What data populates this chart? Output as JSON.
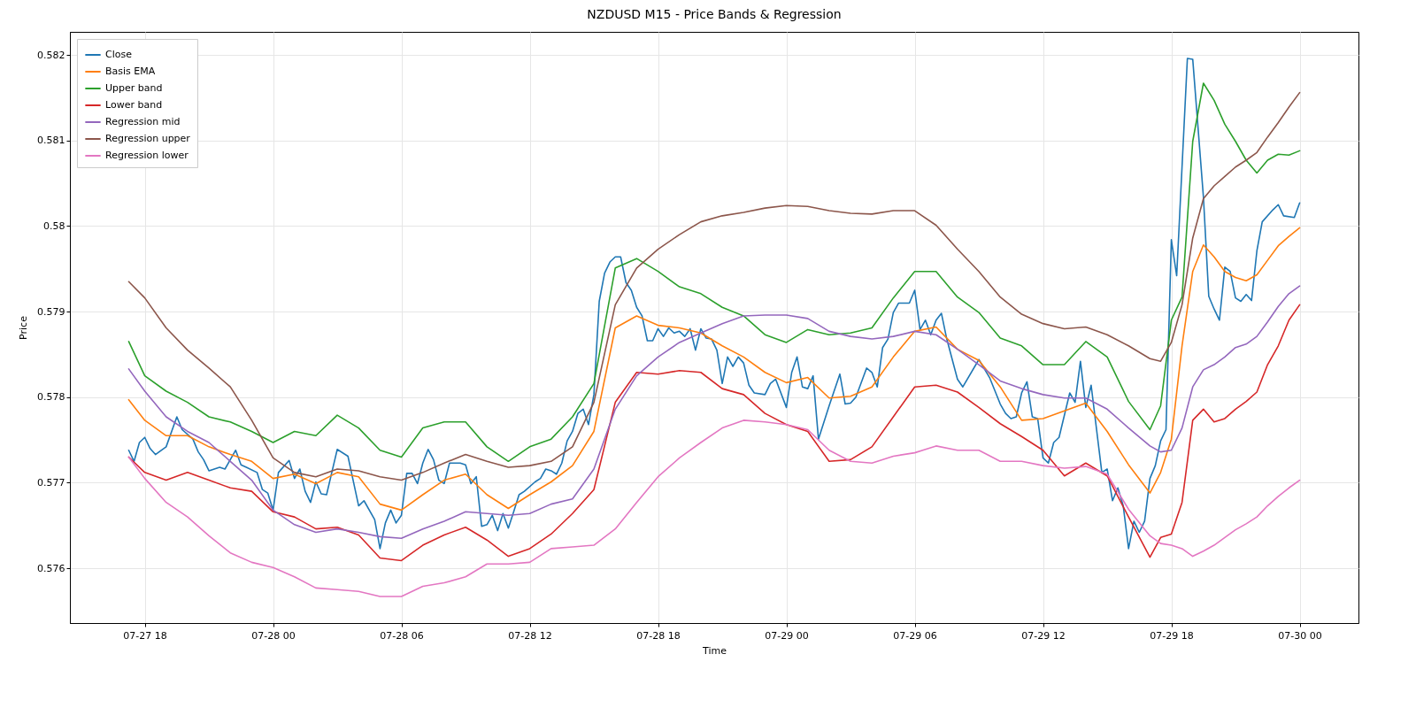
{
  "chart_data": {
    "type": "line",
    "title": "NZDUSD M15 - Price Bands & Regression",
    "xlabel": "Time",
    "ylabel": "Price",
    "x": [
      "--07-27T17:15",
      "--07-27T18:00",
      "--07-27T19:00",
      "--07-27T20:00",
      "--07-27T21:00",
      "--07-27T22:00",
      "--07-27T23:00",
      "--07-28T00:00",
      "--07-28T01:00",
      "--07-28T02:00",
      "--07-28T03:00",
      "--07-28T04:00",
      "--07-28T05:00",
      "--07-28T06:00",
      "--07-28T07:00",
      "--07-28T08:00",
      "--07-28T09:00",
      "--07-28T10:00",
      "--07-28T11:00",
      "--07-28T12:00",
      "--07-28T13:00",
      "--07-28T14:00",
      "--07-28T15:00",
      "--07-28T16:00",
      "--07-28T17:00",
      "--07-28T18:00",
      "--07-28T19:00",
      "--07-28T20:00",
      "--07-28T21:00",
      "--07-28T22:00",
      "--07-28T23:00",
      "--07-29T00:00",
      "--07-29T01:00",
      "--07-29T02:00",
      "--07-29T03:00",
      "--07-29T04:00",
      "--07-29T05:00",
      "--07-29T06:00",
      "--07-29T07:00",
      "--07-29T08:00",
      "--07-29T09:00",
      "--07-29T10:00",
      "--07-29T11:00",
      "--07-29T12:00",
      "--07-29T13:00",
      "--07-29T14:00",
      "--07-29T15:00",
      "--07-29T16:00",
      "--07-29T17:00",
      "--07-29T17:30",
      "--07-29T18:00",
      "--07-29T18:30",
      "--07-29T19:00",
      "--07-29T19:30",
      "--07-29T20:00",
      "--07-29T20:30",
      "--07-29T21:00",
      "--07-29T21:30",
      "--07-29T22:00",
      "--07-29T22:30",
      "--07-29T23:00",
      "--07-29T23:30",
      "--07-30T00:00"
    ],
    "series": [
      {
        "name": "Close",
        "color": "#1f77b4",
        "x": [
          "--07-27T17:15",
          "--07-27T17:30",
          "--07-27T17:45",
          "--07-27T18:00",
          "--07-27T18:15",
          "--07-27T18:30",
          "--07-27T19:00",
          "--07-27T19:30",
          "--07-27T19:45",
          "--07-27T20:15",
          "--07-27T20:30",
          "--07-27T20:45",
          "--07-27T21:00",
          "--07-27T21:30",
          "--07-27T21:45",
          "--07-27T22:15",
          "--07-27T22:30",
          "--07-27T22:45",
          "--07-27T23:15",
          "--07-27T23:30",
          "--07-27T23:45",
          "--07-28T00:00",
          "--07-28T00:15",
          "--07-28T00:45",
          "--07-28T01:00",
          "--07-28T01:15",
          "--07-28T01:30",
          "--07-28T01:45",
          "--07-28T02:00",
          "--07-28T02:15",
          "--07-28T02:30",
          "--07-28T03:00",
          "--07-28T03:30",
          "--07-28T04:00",
          "--07-28T04:15",
          "--07-28T04:45",
          "--07-28T05:00",
          "--07-28T05:15",
          "--07-28T05:30",
          "--07-28T05:45",
          "--07-28T06:00",
          "--07-28T06:15",
          "--07-28T06:30",
          "--07-28T06:45",
          "--07-28T07:00",
          "--07-28T07:15",
          "--07-28T07:30",
          "--07-28T07:45",
          "--07-28T08:00",
          "--07-28T08:15",
          "--07-28T08:45",
          "--07-28T09:00",
          "--07-28T09:15",
          "--07-28T09:30",
          "--07-28T09:45",
          "--07-28T10:00",
          "--07-28T10:15",
          "--07-28T10:30",
          "--07-28T10:45",
          "--07-28T11:00",
          "--07-28T11:15",
          "--07-28T11:30",
          "--07-28T11:45",
          "--07-28T12:15",
          "--07-28T12:30",
          "--07-28T12:45",
          "--07-28T13:00",
          "--07-28T13:15",
          "--07-28T13:30",
          "--07-28T13:45",
          "--07-28T14:00",
          "--07-28T14:15",
          "--07-28T14:30",
          "--07-28T14:45",
          "--07-28T15:00",
          "--07-28T15:15",
          "--07-28T15:30",
          "--07-28T15:45",
          "--07-28T16:00",
          "--07-28T16:15",
          "--07-28T16:30",
          "--07-28T16:45",
          "--07-28T17:00",
          "--07-28T17:15",
          "--07-28T17:30",
          "--07-28T17:45",
          "--07-28T18:00",
          "--07-28T18:15",
          "--07-28T18:30",
          "--07-28T18:45",
          "--07-28T19:00",
          "--07-28T19:15",
          "--07-28T19:30",
          "--07-28T19:45",
          "--07-28T20:00",
          "--07-28T20:15",
          "--07-28T20:30",
          "--07-28T20:45",
          "--07-28T21:00",
          "--07-28T21:15",
          "--07-28T21:30",
          "--07-28T21:45",
          "--07-28T22:00",
          "--07-28T22:15",
          "--07-28T22:30",
          "--07-28T23:00",
          "--07-28T23:15",
          "--07-28T23:30",
          "--07-29T00:00",
          "--07-29T00:15",
          "--07-29T00:30",
          "--07-29T00:45",
          "--07-29T01:00",
          "--07-29T01:15",
          "--07-29T01:30",
          "--07-29T02:00",
          "--07-29T02:30",
          "--07-29T02:45",
          "--07-29T03:00",
          "--07-29T03:15",
          "--07-29T03:45",
          "--07-29T04:00",
          "--07-29T04:15",
          "--07-29T04:30",
          "--07-29T04:45",
          "--07-29T05:00",
          "--07-29T05:15",
          "--07-29T05:30",
          "--07-29T05:45",
          "--07-29T06:00",
          "--07-29T06:15",
          "--07-29T06:30",
          "--07-29T06:45",
          "--07-29T07:00",
          "--07-29T07:15",
          "--07-29T07:30",
          "--07-29T08:00",
          "--07-29T08:15",
          "--07-29T09:00",
          "--07-29T09:30",
          "--07-29T10:00",
          "--07-29T10:15",
          "--07-29T10:30",
          "--07-29T10:45",
          "--07-29T11:00",
          "--07-29T11:15",
          "--07-29T11:30",
          "--07-29T11:45",
          "--07-29T12:00",
          "--07-29T12:15",
          "--07-29T12:30",
          "--07-29T12:45",
          "--07-29T13:15",
          "--07-29T13:30",
          "--07-29T13:45",
          "--07-29T14:00",
          "--07-29T14:15",
          "--07-29T14:45",
          "--07-29T15:00",
          "--07-29T15:15",
          "--07-29T15:30",
          "--07-29T15:45",
          "--07-29T16:00",
          "--07-29T16:15",
          "--07-29T16:30",
          "--07-29T16:45",
          "--07-29T17:00",
          "--07-29T17:15",
          "--07-29T17:30",
          "--07-29T17:45",
          "--07-29T18:00",
          "--07-29T18:15",
          "--07-29T18:45",
          "--07-29T19:00",
          "--07-29T19:30",
          "--07-29T19:45",
          "--07-29T20:00",
          "--07-29T20:15",
          "--07-29T20:30",
          "--07-29T20:45",
          "--07-29T21:00",
          "--07-29T21:15",
          "--07-29T21:30",
          "--07-29T21:45",
          "--07-29T22:00",
          "--07-29T22:15",
          "--07-29T22:45",
          "--07-29T23:00",
          "--07-29T23:15",
          "--07-29T23:45",
          "--07-30T00:00"
        ],
        "values": [
          0.57738,
          0.57725,
          0.57747,
          0.57753,
          0.5774,
          0.57733,
          0.57742,
          0.57777,
          0.57762,
          0.57751,
          0.57736,
          0.57727,
          0.57714,
          0.57718,
          0.57716,
          0.57738,
          0.57721,
          0.57718,
          0.57712,
          0.57692,
          0.57688,
          0.57668,
          0.57712,
          0.57726,
          0.57705,
          0.57716,
          0.5769,
          0.57677,
          0.57701,
          0.57687,
          0.57686,
          0.57739,
          0.57731,
          0.57673,
          0.57679,
          0.57657,
          0.57623,
          0.57653,
          0.57668,
          0.57653,
          0.57662,
          0.57711,
          0.57711,
          0.57699,
          0.57723,
          0.57739,
          0.57727,
          0.57703,
          0.57699,
          0.57723,
          0.57723,
          0.57721,
          0.57699,
          0.57707,
          0.57649,
          0.57651,
          0.57662,
          0.57644,
          0.57664,
          0.57647,
          0.57666,
          0.57686,
          0.5769,
          0.57701,
          0.57705,
          0.57716,
          0.57714,
          0.5771,
          0.57723,
          0.57749,
          0.5776,
          0.57781,
          0.57786,
          0.57768,
          0.57803,
          0.57912,
          0.57945,
          0.57958,
          0.57964,
          0.57964,
          0.57934,
          0.57925,
          0.57905,
          0.57895,
          0.57866,
          0.57866,
          0.5788,
          0.57871,
          0.57881,
          0.57875,
          0.57877,
          0.57871,
          0.5788,
          0.57855,
          0.5788,
          0.57869,
          0.57868,
          0.57855,
          0.57816,
          0.57847,
          0.57836,
          0.57847,
          0.5784,
          0.57814,
          0.57805,
          0.57803,
          0.57816,
          0.57821,
          0.57788,
          0.57829,
          0.57847,
          0.57812,
          0.5781,
          0.57825,
          0.57751,
          0.5779,
          0.57827,
          0.57792,
          0.57793,
          0.578,
          0.57834,
          0.57829,
          0.57812,
          0.57858,
          0.57868,
          0.57899,
          0.5791,
          0.5791,
          0.5791,
          0.57925,
          0.57879,
          0.5789,
          0.57873,
          0.5789,
          0.57898,
          0.57868,
          0.57821,
          0.57812,
          0.57844,
          0.57823,
          0.57792,
          0.57781,
          0.57775,
          0.57777,
          0.57805,
          0.57818,
          0.57777,
          0.57775,
          0.57729,
          0.57723,
          0.57747,
          0.57753,
          0.57805,
          0.57794,
          0.57842,
          0.57788,
          0.57814,
          0.57712,
          0.57716,
          0.57679,
          0.57694,
          0.57673,
          0.57623,
          0.57655,
          0.57642,
          0.57655,
          0.57705,
          0.5772,
          0.57749,
          0.57762,
          0.57984,
          0.57942,
          0.58196,
          0.58195,
          0.58034,
          0.57918,
          0.57903,
          0.5789,
          0.57952,
          0.57947,
          0.57916,
          0.57912,
          0.5792,
          0.57913,
          0.57971,
          0.58005,
          0.58019,
          0.58025,
          0.58012,
          0.5801,
          0.58027
        ]
      },
      {
        "name": "Basis EMA",
        "color": "#ff7f0e",
        "values": [
          0.57797,
          0.57773,
          0.57755,
          0.57755,
          0.57742,
          0.57733,
          0.57725,
          0.57705,
          0.5771,
          0.57699,
          0.57712,
          0.57707,
          0.57675,
          0.57668,
          0.57686,
          0.57703,
          0.5771,
          0.57686,
          0.5767,
          0.57686,
          0.57701,
          0.5772,
          0.5776,
          0.57881,
          0.57895,
          0.57884,
          0.57881,
          0.57875,
          0.5786,
          0.57847,
          0.57829,
          0.57817,
          0.57823,
          0.57799,
          0.57801,
          0.57812,
          0.57847,
          0.57877,
          0.57882,
          0.57856,
          0.57843,
          0.57812,
          0.57773,
          0.57775,
          0.57784,
          0.57793,
          0.5776,
          0.57721,
          0.57688,
          0.57712,
          0.57751,
          0.5786,
          0.57947,
          0.57978,
          0.57964,
          0.57947,
          0.5794,
          0.57936,
          0.57943,
          0.5796,
          0.57977,
          0.57988,
          0.57998
        ]
      },
      {
        "name": "Upper band",
        "color": "#2ca02c",
        "values": [
          0.57865,
          0.57825,
          0.57807,
          0.57794,
          0.57777,
          0.57771,
          0.5776,
          0.57747,
          0.5776,
          0.57755,
          0.57779,
          0.57764,
          0.57738,
          0.5773,
          0.57764,
          0.57771,
          0.57771,
          0.57742,
          0.57725,
          0.57742,
          0.57751,
          0.57777,
          0.57816,
          0.57951,
          0.57962,
          0.57947,
          0.57929,
          0.57921,
          0.57905,
          0.57895,
          0.57873,
          0.57864,
          0.57879,
          0.57873,
          0.57875,
          0.57881,
          0.57916,
          0.57947,
          0.57947,
          0.57917,
          0.57899,
          0.57869,
          0.5786,
          0.57838,
          0.57838,
          0.57865,
          0.57847,
          0.57795,
          0.57762,
          0.5779,
          0.5789,
          0.57917,
          0.58099,
          0.58167,
          0.58147,
          0.58119,
          0.58099,
          0.58077,
          0.58062,
          0.58077,
          0.58084,
          0.58083,
          0.58088
        ]
      },
      {
        "name": "Lower band",
        "color": "#d62728",
        "values": [
          0.5773,
          0.57712,
          0.57703,
          0.57712,
          0.57703,
          0.57694,
          0.5769,
          0.57666,
          0.5766,
          0.57646,
          0.57648,
          0.57639,
          0.57612,
          0.57609,
          0.57627,
          0.57639,
          0.57648,
          0.57633,
          0.57614,
          0.57623,
          0.5764,
          0.57664,
          0.57692,
          0.57794,
          0.57829,
          0.57827,
          0.57831,
          0.57829,
          0.5781,
          0.57803,
          0.57781,
          0.57768,
          0.5776,
          0.57725,
          0.57727,
          0.57742,
          0.57777,
          0.57812,
          0.57814,
          0.57806,
          0.57788,
          0.57769,
          0.57754,
          0.57738,
          0.57708,
          0.57723,
          0.57708,
          0.5766,
          0.57613,
          0.57636,
          0.5764,
          0.57677,
          0.57773,
          0.57786,
          0.57771,
          0.57775,
          0.57786,
          0.57795,
          0.57806,
          0.57838,
          0.5786,
          0.5789,
          0.57908
        ]
      },
      {
        "name": "Regression mid",
        "color": "#9467bd",
        "values": [
          0.57833,
          0.57807,
          0.57777,
          0.5776,
          0.57747,
          0.57725,
          0.57703,
          0.57668,
          0.57651,
          0.57642,
          0.57646,
          0.57642,
          0.57637,
          0.57635,
          0.57646,
          0.57655,
          0.57666,
          0.57664,
          0.57662,
          0.57664,
          0.57675,
          0.57681,
          0.57716,
          0.57786,
          0.57825,
          0.57847,
          0.57864,
          0.57875,
          0.57886,
          0.57895,
          0.57896,
          0.57896,
          0.57892,
          0.57877,
          0.57871,
          0.57868,
          0.57871,
          0.57877,
          0.57873,
          0.57856,
          0.57838,
          0.57819,
          0.5781,
          0.57803,
          0.57799,
          0.57799,
          0.57786,
          0.57764,
          0.57743,
          0.57736,
          0.57738,
          0.57764,
          0.57812,
          0.57832,
          0.57838,
          0.57847,
          0.57858,
          0.57862,
          0.57871,
          0.57888,
          0.57906,
          0.57921,
          0.5793
        ]
      },
      {
        "name": "Regression upper",
        "color": "#8c564b",
        "values": [
          0.57935,
          0.57916,
          0.57881,
          0.57855,
          0.57834,
          0.57812,
          0.57773,
          0.57729,
          0.57712,
          0.57707,
          0.57716,
          0.57714,
          0.57707,
          0.57703,
          0.57712,
          0.57723,
          0.57733,
          0.57725,
          0.57718,
          0.5772,
          0.57725,
          0.57742,
          0.57794,
          0.57908,
          0.57951,
          0.57973,
          0.5799,
          0.58005,
          0.58012,
          0.58016,
          0.58021,
          0.58024,
          0.58023,
          0.58018,
          0.58015,
          0.58014,
          0.58018,
          0.58018,
          0.58001,
          0.57973,
          0.57947,
          0.57917,
          0.57897,
          0.57886,
          0.5788,
          0.57882,
          0.57873,
          0.5786,
          0.57845,
          0.57842,
          0.57864,
          0.57908,
          0.57986,
          0.58032,
          0.58047,
          0.58058,
          0.58069,
          0.58077,
          0.58086,
          0.58104,
          0.58121,
          0.58139,
          0.58156
        ]
      },
      {
        "name": "Regression lower",
        "color": "#e377c2",
        "values": [
          0.5773,
          0.57705,
          0.57677,
          0.5766,
          0.57638,
          0.57618,
          0.57607,
          0.57601,
          0.5759,
          0.57577,
          0.57575,
          0.57573,
          0.57567,
          0.57567,
          0.57579,
          0.57583,
          0.5759,
          0.57605,
          0.57605,
          0.57607,
          0.57623,
          0.57625,
          0.57627,
          0.57646,
          0.57677,
          0.57707,
          0.57729,
          0.57747,
          0.57764,
          0.57773,
          0.57771,
          0.57768,
          0.57762,
          0.57738,
          0.57725,
          0.57723,
          0.57731,
          0.57735,
          0.57743,
          0.57738,
          0.57738,
          0.57725,
          0.57725,
          0.5772,
          0.57717,
          0.57719,
          0.5771,
          0.57669,
          0.57638,
          0.57629,
          0.57627,
          0.57623,
          0.57614,
          0.5762,
          0.57627,
          0.57636,
          0.57645,
          0.57652,
          0.5766,
          0.57673,
          0.57684,
          0.57694,
          0.57703
        ]
      }
    ],
    "xlim": [
      "--07-27T14:30",
      "--07-30T02:45"
    ],
    "xticks": [
      {
        "value": "--07-27T18:00",
        "label": "07-27 18"
      },
      {
        "value": "--07-28T00:00",
        "label": "07-28 00"
      },
      {
        "value": "--07-28T06:00",
        "label": "07-28 06"
      },
      {
        "value": "--07-28T12:00",
        "label": "07-28 12"
      },
      {
        "value": "--07-28T18:00",
        "label": "07-28 18"
      },
      {
        "value": "--07-29T00:00",
        "label": "07-29 00"
      },
      {
        "value": "--07-29T06:00",
        "label": "07-29 06"
      },
      {
        "value": "--07-29T12:00",
        "label": "07-29 12"
      },
      {
        "value": "--07-29T18:00",
        "label": "07-29 18"
      },
      {
        "value": "--07-30T00:00",
        "label": "07-30 00"
      }
    ],
    "ylim": [
      0.57536,
      0.58227
    ],
    "yticks": [
      0.576,
      0.577,
      0.578,
      0.579,
      0.58,
      0.581,
      0.582
    ],
    "grid": true,
    "legend": "top left",
    "line_style": "solid"
  }
}
